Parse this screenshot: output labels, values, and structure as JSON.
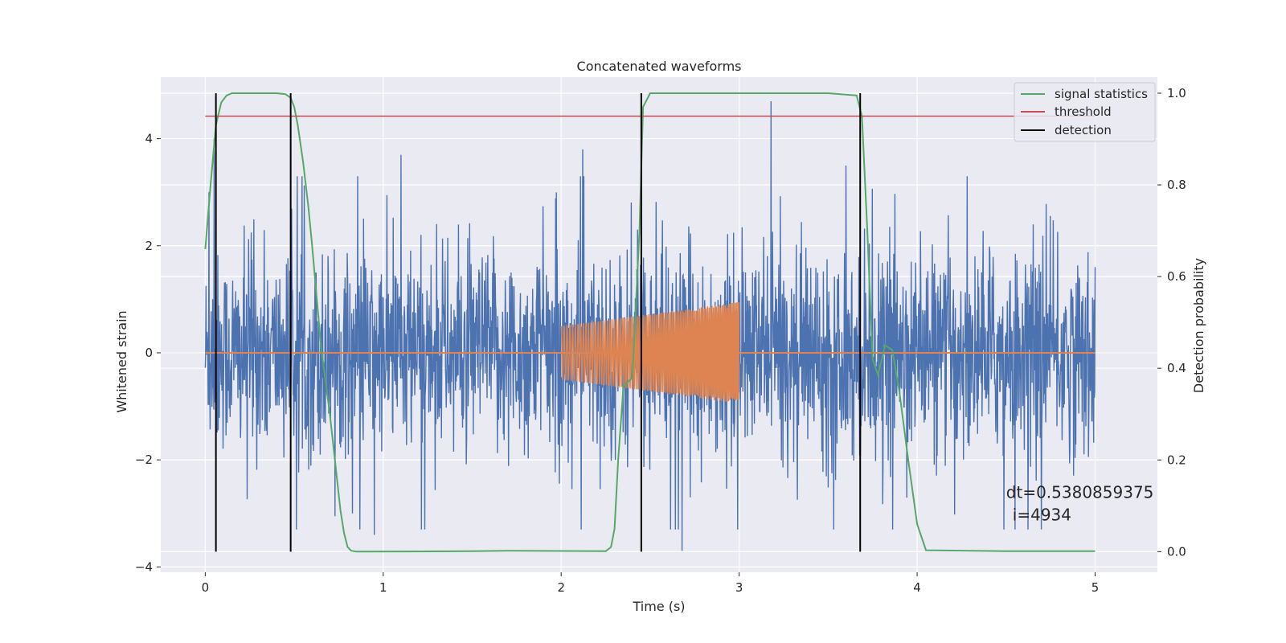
{
  "chart_data": {
    "type": "line",
    "title": "Concatenated waveforms",
    "xlabel": "Time (s)",
    "ylabel": "Whitened strain",
    "ylabel_right": "Detection probability",
    "xlim": [
      -0.25,
      5.35
    ],
    "ylim": [
      -4.1,
      5.15
    ],
    "ylim_right": [
      -0.045,
      1.035
    ],
    "x_ticks": [
      "0",
      "1",
      "2",
      "3",
      "4",
      "5"
    ],
    "x_tick_values": [
      0,
      1,
      2,
      3,
      4,
      5
    ],
    "y_ticks": [
      "−4",
      "−2",
      "0",
      "2",
      "4"
    ],
    "y_tick_values": [
      -4,
      -2,
      0,
      2,
      4
    ],
    "y_right_ticks": [
      "0.0",
      "0.2",
      "0.4",
      "0.6",
      "0.8",
      "1.0"
    ],
    "y_right_tick_values": [
      0,
      0.2,
      0.4,
      0.6,
      0.8,
      1.0
    ],
    "grid": true,
    "legend_position": "top-right",
    "legend": [
      {
        "label": "signal statistics",
        "color": "#55a868"
      },
      {
        "label": "threshold",
        "color": "#c44e52"
      },
      {
        "label": "detection",
        "color": "#000000"
      }
    ],
    "series": [
      {
        "kind": "noise",
        "color": "#4c72b0",
        "axis": "left",
        "x_range": [
          0,
          5
        ],
        "typical_std": 0.9,
        "peak_values": [
          {
            "x": 0.02,
            "y": 3.0
          },
          {
            "x": 0.05,
            "y": 4.0
          },
          {
            "x": 0.95,
            "y": -3.4
          },
          {
            "x": 1.1,
            "y": 3.7
          },
          {
            "x": 2.12,
            "y": 3.8
          },
          {
            "x": 2.45,
            "y": 3.4
          },
          {
            "x": 2.68,
            "y": -3.7
          },
          {
            "x": 3.18,
            "y": 4.7
          },
          {
            "x": 3.6,
            "y": 3.5
          },
          {
            "x": 4.55,
            "y": -3.3
          }
        ]
      },
      {
        "kind": "chirp",
        "color": "#dd8452",
        "axis": "left",
        "x_range": [
          2.0,
          3.0
        ],
        "amplitude_start": 0.5,
        "amplitude_end": 0.95
      },
      {
        "name": "signal statistics",
        "color": "#55a868",
        "axis": "right",
        "x": [
          0,
          0.03,
          0.06,
          0.09,
          0.12,
          0.15,
          0.2,
          0.3,
          0.4,
          0.45,
          0.48,
          0.5,
          0.52,
          0.55,
          0.58,
          0.6,
          0.65,
          0.7,
          0.72,
          0.74,
          0.76,
          0.78,
          0.8,
          0.82,
          0.85,
          1.5,
          1.7,
          2.25,
          2.28,
          2.3,
          2.32,
          2.35,
          2.4,
          2.44,
          2.46,
          2.5,
          3.5,
          3.66,
          3.69,
          3.72,
          3.75,
          3.78,
          3.82,
          3.86,
          3.9,
          3.95,
          4.0,
          4.05,
          4.5,
          5.0
        ],
        "y": [
          0.66,
          0.8,
          0.93,
          0.98,
          0.995,
          1.0,
          1.0,
          1.0,
          1.0,
          0.998,
          0.99,
          0.97,
          0.93,
          0.85,
          0.75,
          0.67,
          0.45,
          0.3,
          0.23,
          0.16,
          0.09,
          0.04,
          0.01,
          0.002,
          0.0,
          0.001,
          0.002,
          0.001,
          0.01,
          0.05,
          0.2,
          0.36,
          0.38,
          0.7,
          0.97,
          1.0,
          1.0,
          0.995,
          0.95,
          0.7,
          0.42,
          0.385,
          0.45,
          0.44,
          0.35,
          0.2,
          0.06,
          0.003,
          0.001,
          0.001
        ]
      },
      {
        "name": "threshold",
        "color": "#c44e52",
        "axis": "right",
        "x": [
          0,
          5
        ],
        "y": [
          0.95,
          0.95
        ]
      }
    ],
    "detections": [
      0.06,
      0.48,
      2.45,
      3.68
    ],
    "annotation": {
      "line1": "dt=0.5380859375",
      "line2": "i=4934",
      "x": 4.5,
      "y": 0.11
    }
  }
}
